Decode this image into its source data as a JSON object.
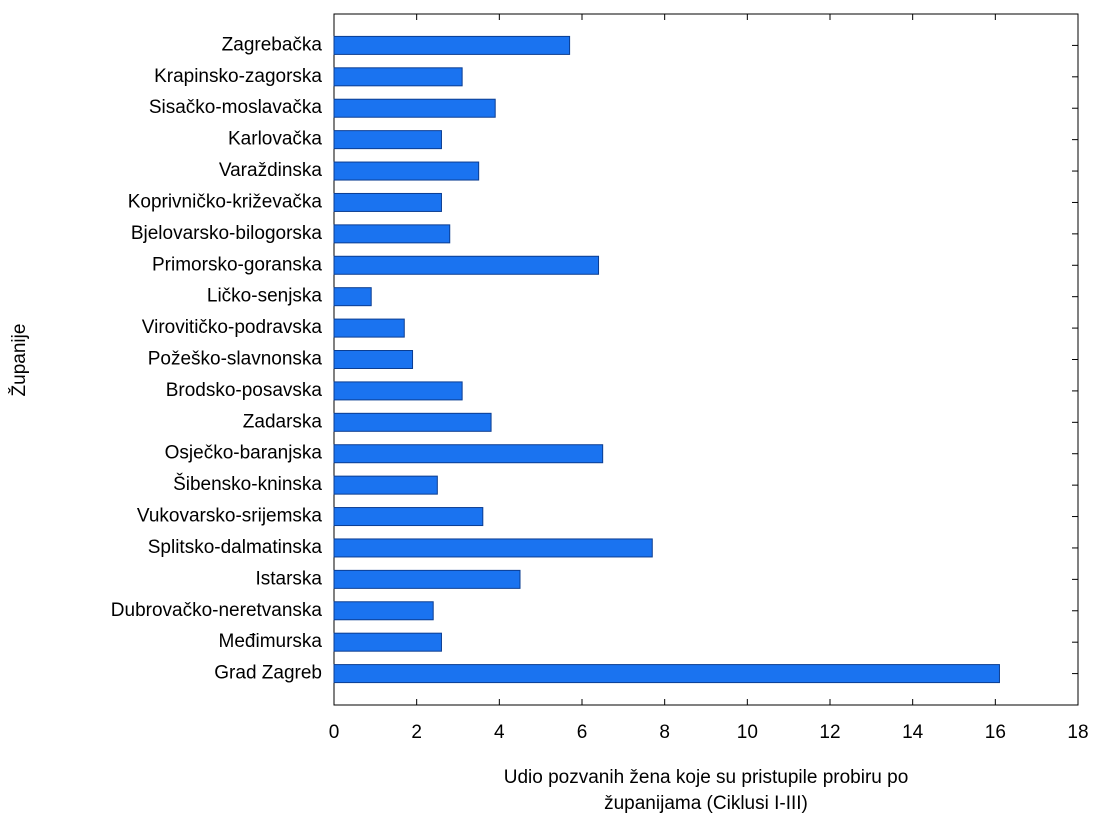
{
  "chart_data": {
    "type": "barh",
    "xlabel": [
      "Udio pozvanih žena koje su pristupile probiru po",
      "županijama (Ciklusi I-III)"
    ],
    "ylabel": "Županije",
    "categories": [
      "Zagrebačka",
      "Krapinsko-zagorska",
      "Sisačko-moslavačka",
      "Karlovačka",
      "Varaždinska",
      "Koprivničko-križevačka",
      "Bjelovarsko-bilogorska",
      "Primorsko-goranska",
      "Ličko-senjska",
      "Virovitičko-podravska",
      "Požeško-slavnonska",
      "Brodsko-posavska",
      "Zadarska",
      "Osječko-baranjska",
      "Šibensko-kninska",
      "Vukovarsko-srijemska",
      "Splitsko-dalmatinska",
      "Istarska",
      "Dubrovačko-neretvanska",
      "Međimurska",
      "Grad Zagreb"
    ],
    "values": [
      5.7,
      3.1,
      3.9,
      2.6,
      3.5,
      2.6,
      2.8,
      6.4,
      0.9,
      1.7,
      1.9,
      3.1,
      3.8,
      6.5,
      2.5,
      3.6,
      7.7,
      4.5,
      2.4,
      2.6,
      16.1
    ],
    "color": "#1a73f0",
    "xlim": [
      0,
      18
    ],
    "xticks": [
      0,
      2,
      4,
      6,
      8,
      10,
      12,
      14,
      16,
      18
    ]
  }
}
